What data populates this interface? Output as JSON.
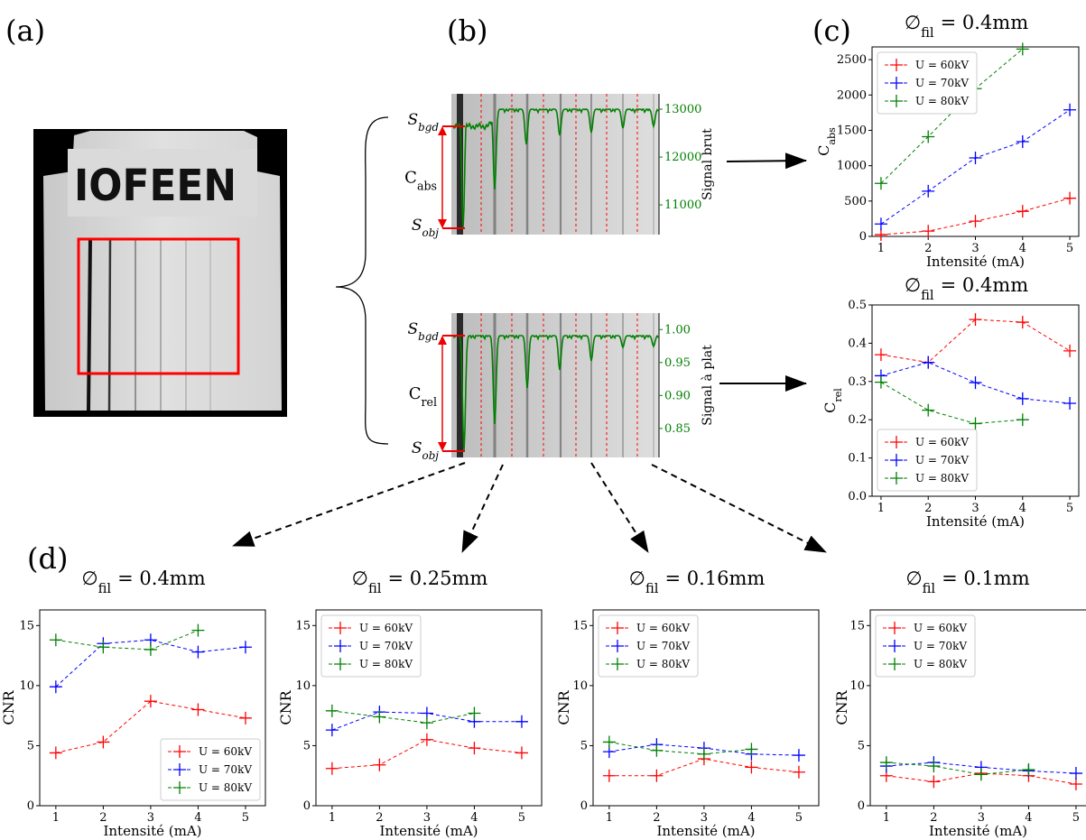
{
  "panel_labels": [
    "(a)",
    "(b)",
    "(c)",
    "(d)"
  ],
  "image_text": "IOFEEN",
  "chart_data": [
    {
      "type": "signal",
      "y2label": "Signal brut",
      "color": "#008000",
      "y2lim": [
        10380,
        13320
      ],
      "y2ticks": [
        11000,
        12000,
        13000
      ],
      "annotations": {
        "top": {
          "base": "S",
          "sub": "bgd"
        },
        "contrast": {
          "base": "C",
          "sub": "abs"
        },
        "bottom": {
          "base": "S",
          "sub": "obj"
        }
      }
    },
    {
      "type": "signal",
      "y2label": "Signal à plat",
      "color": "#008000",
      "y2lim": [
        0.806,
        1.025
      ],
      "y2ticks": [
        0.85,
        {
          "value": 0.9,
          "label": "0.90"
        },
        0.95,
        {
          "value": 1,
          "label": "1.00"
        }
      ],
      "annotations": {
        "top": {
          "base": "S",
          "sub": "bgd"
        },
        "contrast": {
          "base": "C",
          "sub": "rel"
        },
        "bottom": {
          "base": "S",
          "sub": "obj"
        }
      }
    },
    {
      "type": "line",
      "title": {
        "base": "∅",
        "sub": "fil",
        "rest": "= 0.4mm"
      },
      "xlabel": "Intensité (mA)",
      "ylabel": {
        "base": "C",
        "sub": "abs"
      },
      "x": [
        1,
        2,
        3,
        4,
        5
      ],
      "xlim": [
        0.81,
        5.19
      ],
      "xticks": [
        1,
        2,
        3,
        4,
        5
      ],
      "ylim": [
        0,
        2680
      ],
      "yticks": [
        0,
        500,
        1000,
        1500,
        2000,
        2500
      ],
      "legend": "upper left",
      "series": [
        {
          "name": "U = 60kV",
          "color": "#ff0000",
          "values": [
            25,
            75,
            215,
            355,
            540
          ]
        },
        {
          "name": "U = 70kV",
          "color": "#0000ff",
          "values": [
            175,
            640,
            1110,
            1340,
            1790
          ]
        },
        {
          "name": "U = 80kV",
          "color": "#008000",
          "values": [
            750,
            1410,
            2090,
            2650,
            null
          ]
        }
      ]
    },
    {
      "type": "line",
      "title": {
        "base": "∅",
        "sub": "fil",
        "rest": "= 0.4mm"
      },
      "xlabel": "Intensité (mA)",
      "ylabel": {
        "base": "C",
        "sub": "rel"
      },
      "x": [
        1,
        2,
        3,
        4,
        5
      ],
      "xlim": [
        0.81,
        5.19
      ],
      "xticks": [
        1,
        2,
        3,
        4,
        5
      ],
      "ylim": [
        0,
        0.5
      ],
      "yticks": [
        {
          "value": 0,
          "label": "0.0"
        },
        0.1,
        0.2,
        0.3,
        0.4,
        0.5
      ],
      "legend": "lower left",
      "series": [
        {
          "name": "U = 60kV",
          "color": "#ff0000",
          "values": [
            0.37,
            0.35,
            0.462,
            0.455,
            0.38
          ]
        },
        {
          "name": "U = 70kV",
          "color": "#0000ff",
          "values": [
            0.315,
            0.35,
            0.297,
            0.255,
            0.243
          ]
        },
        {
          "name": "U = 80kV",
          "color": "#008000",
          "values": [
            0.298,
            0.225,
            0.19,
            0.2,
            null
          ]
        }
      ]
    },
    {
      "type": "line",
      "title": {
        "base": "∅",
        "sub": "fil",
        "rest": "= 0.4mm"
      },
      "xlabel": "Intensité (mA)",
      "ylabel": "CNR",
      "x": [
        1,
        2,
        3,
        4,
        5
      ],
      "xlim": [
        0.66,
        5.42
      ],
      "xticks": [
        1,
        2,
        3,
        4,
        5
      ],
      "ylim": [
        0,
        16.3
      ],
      "yticks": [
        0,
        5,
        10,
        15
      ],
      "legend": "lower right",
      "series": [
        {
          "name": "U = 60kV",
          "color": "#ff0000",
          "values": [
            4.4,
            5.3,
            8.7,
            8.0,
            7.3
          ]
        },
        {
          "name": "U = 70kV",
          "color": "#0000ff",
          "values": [
            9.9,
            13.5,
            13.8,
            12.8,
            13.2
          ]
        },
        {
          "name": "U = 80kV",
          "color": "#008000",
          "values": [
            13.8,
            13.2,
            13.0,
            14.6,
            null
          ]
        }
      ]
    },
    {
      "type": "line",
      "title": {
        "base": "∅",
        "sub": "fil",
        "rest": "= 0.25mm"
      },
      "xlabel": "Intensité (mA)",
      "ylabel": "CNR",
      "x": [
        1,
        2,
        3,
        4,
        5
      ],
      "xlim": [
        0.66,
        5.42
      ],
      "xticks": [
        1,
        2,
        3,
        4,
        5
      ],
      "ylim": [
        0,
        16.3
      ],
      "yticks": [
        0,
        5,
        10,
        15
      ],
      "legend": "upper left",
      "series": [
        {
          "name": "U = 60kV",
          "color": "#ff0000",
          "values": [
            3.1,
            3.4,
            5.5,
            4.8,
            4.4
          ]
        },
        {
          "name": "U = 70kV",
          "color": "#0000ff",
          "values": [
            6.3,
            7.8,
            7.7,
            7.0,
            7.0
          ]
        },
        {
          "name": "U = 80kV",
          "color": "#008000",
          "values": [
            7.9,
            7.4,
            6.9,
            7.7,
            null
          ]
        }
      ]
    },
    {
      "type": "line",
      "title": {
        "base": "∅",
        "sub": "fil",
        "rest": "= 0.16mm"
      },
      "xlabel": "Intensité (mA)",
      "ylabel": "CNR",
      "x": [
        1,
        2,
        3,
        4,
        5
      ],
      "xlim": [
        0.66,
        5.42
      ],
      "xticks": [
        1,
        2,
        3,
        4,
        5
      ],
      "ylim": [
        0,
        16.3
      ],
      "yticks": [
        0,
        5,
        10,
        15
      ],
      "legend": "upper left",
      "series": [
        {
          "name": "U = 60kV",
          "color": "#ff0000",
          "values": [
            2.5,
            2.5,
            3.9,
            3.2,
            2.8
          ]
        },
        {
          "name": "U = 70kV",
          "color": "#0000ff",
          "values": [
            4.5,
            5.1,
            4.8,
            4.3,
            4.2
          ]
        },
        {
          "name": "U = 80kV",
          "color": "#008000",
          "values": [
            5.3,
            4.6,
            4.3,
            4.7,
            null
          ]
        }
      ]
    },
    {
      "type": "line",
      "title": {
        "base": "∅",
        "sub": "fil",
        "rest": "= 0.1mm"
      },
      "xlabel": "Intensité (mA)",
      "ylabel": "CNR",
      "x": [
        1,
        2,
        3,
        4,
        5
      ],
      "xlim": [
        0.66,
        5.42
      ],
      "xticks": [
        1,
        2,
        3,
        4,
        5
      ],
      "ylim": [
        0,
        16.3
      ],
      "yticks": [
        0,
        5,
        10,
        15
      ],
      "legend": "upper left",
      "series": [
        {
          "name": "U = 60kV",
          "color": "#ff0000",
          "values": [
            2.5,
            2.0,
            2.7,
            2.5,
            1.8
          ]
        },
        {
          "name": "U = 70kV",
          "color": "#0000ff",
          "values": [
            3.3,
            3.6,
            3.2,
            2.9,
            2.7
          ]
        },
        {
          "name": "U = 80kV",
          "color": "#008000",
          "values": [
            3.6,
            3.3,
            2.6,
            3.0,
            null
          ]
        }
      ]
    }
  ]
}
